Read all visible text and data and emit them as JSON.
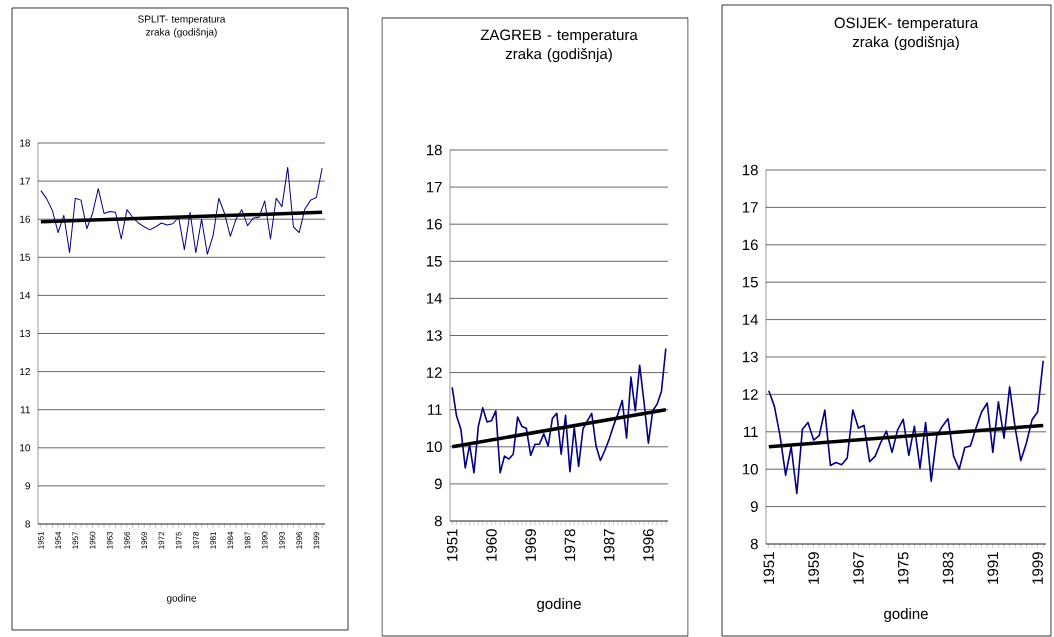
{
  "chart_data": [
    {
      "type": "line",
      "title": "SPLIT- temperatura zraka (godišnja)",
      "xlabel": "godine",
      "grid": "y",
      "xlim": [
        1950.5,
        2000.5
      ],
      "ylim": [
        8,
        18
      ],
      "yticks": [
        8,
        9,
        10,
        11,
        12,
        13,
        14,
        15,
        16,
        17,
        18
      ],
      "xticks": [
        1951,
        {
          "value": 1952,
          "label": null
        },
        {
          "value": 1953,
          "label": null
        },
        1954,
        {
          "value": 1955,
          "label": null
        },
        {
          "value": 1956,
          "label": null
        },
        1957,
        {
          "value": 1958,
          "label": null
        },
        {
          "value": 1959,
          "label": null
        },
        1960,
        {
          "value": 1961,
          "label": null
        },
        {
          "value": 1962,
          "label": null
        },
        1963,
        {
          "value": 1964,
          "label": null
        },
        {
          "value": 1965,
          "label": null
        },
        1966,
        {
          "value": 1967,
          "label": null
        },
        {
          "value": 1968,
          "label": null
        },
        1969,
        {
          "value": 1970,
          "label": null
        },
        {
          "value": 1971,
          "label": null
        },
        1972,
        {
          "value": 1973,
          "label": null
        },
        {
          "value": 1974,
          "label": null
        },
        1975,
        {
          "value": 1976,
          "label": null
        },
        {
          "value": 1977,
          "label": null
        },
        1978,
        {
          "value": 1979,
          "label": null
        },
        {
          "value": 1980,
          "label": null
        },
        1981,
        {
          "value": 1982,
          "label": null
        },
        {
          "value": 1983,
          "label": null
        },
        1984,
        {
          "value": 1985,
          "label": null
        },
        {
          "value": 1986,
          "label": null
        },
        1987,
        {
          "value": 1988,
          "label": null
        },
        {
          "value": 1989,
          "label": null
        },
        1990,
        {
          "value": 1991,
          "label": null
        },
        {
          "value": 1992,
          "label": null
        },
        1993,
        {
          "value": 1994,
          "label": null
        },
        {
          "value": 1995,
          "label": null
        },
        1996,
        {
          "value": 1997,
          "label": null
        },
        {
          "value": 1998,
          "label": null
        },
        1999,
        {
          "value": 2000,
          "label": null
        }
      ],
      "series": [
        {
          "color": "#000080",
          "x": [
            1951,
            1952,
            1953,
            1954,
            1955,
            1956,
            1957,
            1958,
            1959,
            1960,
            1961,
            1962,
            1963,
            1964,
            1965,
            1966,
            1967,
            1968,
            1969,
            1970,
            1971,
            1972,
            1973,
            1974,
            1975,
            1976,
            1977,
            1978,
            1979,
            1980,
            1981,
            1982,
            1983,
            1984,
            1985,
            1986,
            1987,
            1988,
            1989,
            1990,
            1991,
            1992,
            1993,
            1994,
            1995,
            1996,
            1997,
            1998,
            1999,
            2000
          ],
          "values": [
            16.75,
            16.54,
            16.23,
            15.65,
            16.1,
            15.12,
            16.55,
            16.5,
            15.75,
            16.15,
            16.8,
            16.15,
            16.2,
            16.18,
            15.48,
            16.25,
            16.05,
            15.9,
            15.8,
            15.72,
            15.8,
            15.9,
            15.85,
            15.88,
            16.05,
            15.2,
            16.18,
            15.12,
            16.0,
            15.08,
            15.57,
            16.55,
            16.15,
            15.55,
            16.0,
            16.25,
            15.83,
            16.03,
            16.05,
            16.48,
            15.48,
            16.55,
            16.33,
            17.36,
            15.8,
            15.65,
            16.27,
            16.5,
            16.57,
            17.34
          ]
        },
        {
          "type": "line",
          "color": "#000000",
          "x": [
            1951,
            2000
          ],
          "values": [
            15.93,
            16.18
          ]
        }
      ]
    },
    {
      "type": "line",
      "title": "ZAGREB - temperatura zraka (godišnja)",
      "xlabel": "godine",
      "grid": "y",
      "xlim": [
        1950.5,
        2000.5
      ],
      "ylim": [
        8,
        18
      ],
      "yticks": [
        8,
        9,
        10,
        11,
        12,
        13,
        14,
        15,
        16,
        17,
        18
      ],
      "xticks": [
        1951,
        {
          "value": 1952,
          "label": null
        },
        {
          "value": 1953,
          "label": null
        },
        {
          "value": 1954,
          "label": null
        },
        {
          "value": 1955,
          "label": null
        },
        {
          "value": 1956,
          "label": null
        },
        {
          "value": 1957,
          "label": null
        },
        {
          "value": 1958,
          "label": null
        },
        {
          "value": 1959,
          "label": null
        },
        1960,
        {
          "value": 1961,
          "label": null
        },
        {
          "value": 1962,
          "label": null
        },
        {
          "value": 1963,
          "label": null
        },
        {
          "value": 1964,
          "label": null
        },
        {
          "value": 1965,
          "label": null
        },
        {
          "value": 1966,
          "label": null
        },
        {
          "value": 1967,
          "label": null
        },
        {
          "value": 1968,
          "label": null
        },
        1969,
        {
          "value": 1970,
          "label": null
        },
        {
          "value": 1971,
          "label": null
        },
        {
          "value": 1972,
          "label": null
        },
        {
          "value": 1973,
          "label": null
        },
        {
          "value": 1974,
          "label": null
        },
        {
          "value": 1975,
          "label": null
        },
        {
          "value": 1976,
          "label": null
        },
        {
          "value": 1977,
          "label": null
        },
        1978,
        {
          "value": 1979,
          "label": null
        },
        {
          "value": 1980,
          "label": null
        },
        {
          "value": 1981,
          "label": null
        },
        {
          "value": 1982,
          "label": null
        },
        {
          "value": 1983,
          "label": null
        },
        {
          "value": 1984,
          "label": null
        },
        {
          "value": 1985,
          "label": null
        },
        {
          "value": 1986,
          "label": null
        },
        1987,
        {
          "value": 1988,
          "label": null
        },
        {
          "value": 1989,
          "label": null
        },
        {
          "value": 1990,
          "label": null
        },
        {
          "value": 1991,
          "label": null
        },
        {
          "value": 1992,
          "label": null
        },
        {
          "value": 1993,
          "label": null
        },
        {
          "value": 1994,
          "label": null
        },
        {
          "value": 1995,
          "label": null
        },
        1996,
        {
          "value": 1997,
          "label": null
        },
        {
          "value": 1998,
          "label": null
        },
        {
          "value": 1999,
          "label": null
        },
        {
          "value": 2000,
          "label": null
        }
      ],
      "series": [
        {
          "color": "#000080",
          "x": [
            1951,
            1952,
            1953,
            1954,
            1955,
            1956,
            1957,
            1958,
            1959,
            1960,
            1961,
            1962,
            1963,
            1964,
            1965,
            1966,
            1967,
            1968,
            1969,
            1970,
            1971,
            1972,
            1973,
            1974,
            1975,
            1976,
            1977,
            1978,
            1979,
            1980,
            1981,
            1982,
            1983,
            1984,
            1985,
            1986,
            1987,
            1988,
            1989,
            1990,
            1991,
            1992,
            1993,
            1994,
            1995,
            1996,
            1997,
            1998,
            1999,
            2000
          ],
          "values": [
            11.6,
            10.83,
            10.47,
            9.43,
            10.05,
            9.3,
            10.55,
            11.05,
            10.67,
            10.7,
            10.97,
            9.3,
            9.75,
            9.67,
            9.8,
            10.8,
            10.55,
            10.5,
            9.77,
            10.07,
            10.07,
            10.35,
            10.02,
            10.77,
            10.9,
            9.8,
            10.85,
            9.33,
            10.52,
            9.47,
            10.48,
            10.7,
            10.9,
            10.02,
            9.63,
            9.9,
            10.2,
            10.57,
            10.88,
            11.25,
            10.23,
            11.88,
            10.97,
            12.2,
            11.2,
            10.1,
            10.97,
            11.15,
            11.5,
            12.65
          ]
        },
        {
          "type": "line",
          "color": "#000000",
          "x": [
            1951,
            2000
          ],
          "values": [
            10.0,
            11.0
          ]
        }
      ]
    },
    {
      "type": "line",
      "title": "OSIJEK- temperatura zraka (godišnja)",
      "xlabel": "godine",
      "grid": "y",
      "xlim": [
        1950.5,
        2000.5
      ],
      "ylim": [
        8,
        18
      ],
      "yticks": [
        8,
        9,
        10,
        11,
        12,
        13,
        14,
        15,
        16,
        17,
        18
      ],
      "xticks": [
        1951,
        {
          "value": 1952,
          "label": null
        },
        {
          "value": 1953,
          "label": null
        },
        {
          "value": 1954,
          "label": null
        },
        {
          "value": 1955,
          "label": null
        },
        {
          "value": 1956,
          "label": null
        },
        {
          "value": 1957,
          "label": null
        },
        {
          "value": 1958,
          "label": null
        },
        1959,
        {
          "value": 1960,
          "label": null
        },
        {
          "value": 1961,
          "label": null
        },
        {
          "value": 1962,
          "label": null
        },
        {
          "value": 1963,
          "label": null
        },
        {
          "value": 1964,
          "label": null
        },
        {
          "value": 1965,
          "label": null
        },
        {
          "value": 1966,
          "label": null
        },
        1967,
        {
          "value": 1968,
          "label": null
        },
        {
          "value": 1969,
          "label": null
        },
        {
          "value": 1970,
          "label": null
        },
        {
          "value": 1971,
          "label": null
        },
        {
          "value": 1972,
          "label": null
        },
        {
          "value": 1973,
          "label": null
        },
        {
          "value": 1974,
          "label": null
        },
        1975,
        {
          "value": 1976,
          "label": null
        },
        {
          "value": 1977,
          "label": null
        },
        {
          "value": 1978,
          "label": null
        },
        {
          "value": 1979,
          "label": null
        },
        {
          "value": 1980,
          "label": null
        },
        {
          "value": 1981,
          "label": null
        },
        {
          "value": 1982,
          "label": null
        },
        1983,
        {
          "value": 1984,
          "label": null
        },
        {
          "value": 1985,
          "label": null
        },
        {
          "value": 1986,
          "label": null
        },
        {
          "value": 1987,
          "label": null
        },
        {
          "value": 1988,
          "label": null
        },
        {
          "value": 1989,
          "label": null
        },
        {
          "value": 1990,
          "label": null
        },
        1991,
        {
          "value": 1992,
          "label": null
        },
        {
          "value": 1993,
          "label": null
        },
        {
          "value": 1994,
          "label": null
        },
        {
          "value": 1995,
          "label": null
        },
        {
          "value": 1996,
          "label": null
        },
        {
          "value": 1997,
          "label": null
        },
        {
          "value": 1998,
          "label": null
        },
        1999,
        {
          "value": 2000,
          "label": null
        }
      ],
      "series": [
        {
          "color": "#000080",
          "x": [
            1951,
            1952,
            1953,
            1954,
            1955,
            1956,
            1957,
            1958,
            1959,
            1960,
            1961,
            1962,
            1963,
            1964,
            1965,
            1966,
            1967,
            1968,
            1969,
            1970,
            1971,
            1972,
            1973,
            1974,
            1975,
            1976,
            1977,
            1978,
            1979,
            1980,
            1981,
            1982,
            1983,
            1984,
            1985,
            1986,
            1987,
            1988,
            1989,
            1990,
            1991,
            1992,
            1993,
            1994,
            1995,
            1996,
            1997,
            1998,
            1999,
            2000
          ],
          "values": [
            12.1,
            11.68,
            10.9,
            9.84,
            10.6,
            9.35,
            11.07,
            11.25,
            10.78,
            10.9,
            11.58,
            10.1,
            10.18,
            10.12,
            10.3,
            11.58,
            11.1,
            11.17,
            10.2,
            10.35,
            10.72,
            11.02,
            10.45,
            11.05,
            11.33,
            10.37,
            11.15,
            10.02,
            11.25,
            9.68,
            10.9,
            11.15,
            11.35,
            10.35,
            10.0,
            10.58,
            10.62,
            11.1,
            11.53,
            11.77,
            10.45,
            11.8,
            10.83,
            12.2,
            11.1,
            10.23,
            10.7,
            11.32,
            11.53,
            12.9
          ]
        },
        {
          "type": "line",
          "color": "#000000",
          "x": [
            1951,
            2000
          ],
          "values": [
            10.6,
            11.17
          ]
        }
      ]
    }
  ]
}
